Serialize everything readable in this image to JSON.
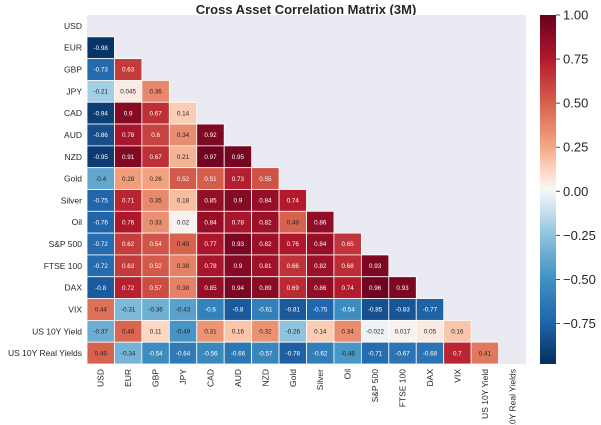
{
  "chart_data": {
    "type": "heatmap",
    "title": "Cross Asset Correlation Matrix (3M)",
    "labels": [
      "USD",
      "EUR",
      "GBP",
      "JPY",
      "CAD",
      "AUD",
      "NZD",
      "Gold",
      "Silver",
      "Oil",
      "S&P 500",
      "FTSE 100",
      "DAX",
      "VIX",
      "US 10Y Yield",
      "US 10Y Real Yields"
    ],
    "mask": "upper triangle and diagonal hidden",
    "rows": [
      [],
      [
        "-0.98"
      ],
      [
        "-0.73",
        "0.63"
      ],
      [
        "-0.21",
        "0.045",
        "0.36"
      ],
      [
        "-0.94",
        "0.9",
        "0.67",
        "0.14"
      ],
      [
        "-0.86",
        "0.78",
        "0.6",
        "0.34",
        "0.92"
      ],
      [
        "-0.95",
        "0.91",
        "0.67",
        "0.21",
        "0.97",
        "0.95"
      ],
      [
        "-0.4",
        "0.28",
        "0.26",
        "0.52",
        "0.51",
        "0.73",
        "0.55"
      ],
      [
        "-0.75",
        "0.71",
        "0.35",
        "0.18",
        "0.85",
        "0.9",
        "0.84",
        "0.74"
      ],
      [
        "-0.76",
        "0.76",
        "0.33",
        "0.02",
        "0.84",
        "0.78",
        "0.82",
        "0.49",
        "0.86"
      ],
      [
        "-0.72",
        "0.62",
        "0.54",
        "0.49",
        "0.77",
        "0.93",
        "0.82",
        "0.76",
        "0.84",
        "0.65"
      ],
      [
        "-0.72",
        "0.63",
        "0.52",
        "0.38",
        "0.78",
        "0.9",
        "0.81",
        "0.66",
        "0.82",
        "0.68",
        "0.93"
      ],
      [
        "-0.8",
        "0.72",
        "0.57",
        "0.38",
        "0.85",
        "0.94",
        "0.89",
        "0.69",
        "0.86",
        "0.74",
        "0.96",
        "0.93"
      ],
      [
        "0.44",
        "-0.31",
        "-0.36",
        "-0.43",
        "-0.6",
        "-0.8",
        "-0.61",
        "-0.81",
        "-0.75",
        "-0.54",
        "-0.85",
        "-0.83",
        "-0.77"
      ],
      [
        "-0.37",
        "0.48",
        "0.11",
        "-0.49",
        "0.31",
        "0.16",
        "0.32",
        "-0.26",
        "0.14",
        "0.34",
        "-0.022",
        "0.017",
        "0.05",
        "0.16"
      ],
      [
        "0.49",
        "-0.34",
        "-0.54",
        "-0.64",
        "-0.56",
        "-0.66",
        "-0.57",
        "-0.78",
        "-0.62",
        "-0.48",
        "-0.71",
        "-0.67",
        "-0.68",
        "0.7",
        "0.41"
      ]
    ],
    "colorbar": {
      "range": [
        -1,
        1
      ],
      "ticks": [
        "1.00",
        "0.75",
        "0.50",
        "0.25",
        "0.00",
        "−0.25",
        "−0.50",
        "−0.75"
      ],
      "colormap": "diverging red-blue (RdBu_r)"
    },
    "colors": {
      "plot_background": "#eaeaf2",
      "grid": "#ffffff"
    }
  }
}
